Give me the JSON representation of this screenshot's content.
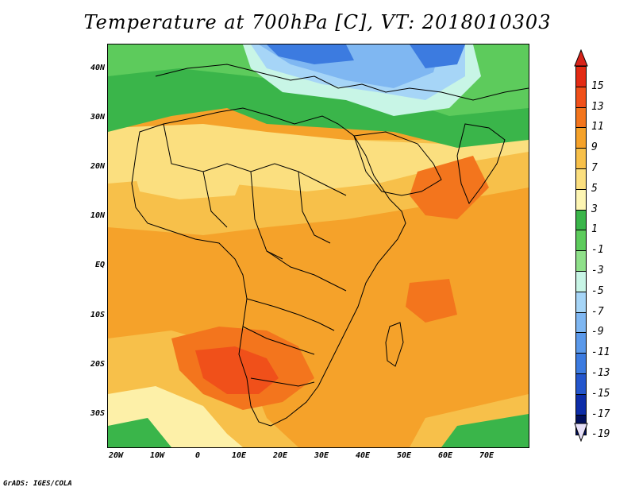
{
  "title": "Temperature at 700hPa [C], VT: 2018010303",
  "credit": "GrADS: IGES/COLA",
  "lat_labels": [
    "40N",
    "30N",
    "20N",
    "10N",
    "EQ",
    "10S",
    "20S",
    "30S"
  ],
  "lon_labels": [
    "20W",
    "10W",
    "0",
    "10E",
    "20E",
    "30E",
    "40E",
    "50E",
    "60E",
    "70E"
  ],
  "colorbar": {
    "labels": [
      "15",
      "13",
      "11",
      "9",
      "7",
      "5",
      "3",
      "1",
      "-1",
      "-3",
      "-5",
      "-7",
      "-9",
      "-11",
      "-13",
      "-15",
      "-17",
      "-19"
    ],
    "colors": [
      "#e32b14",
      "#f0501a",
      "#f3751d",
      "#f5a22a",
      "#f7c04a",
      "#fbdf7f",
      "#fdf5b3",
      "#3ab54a",
      "#5dcb5c",
      "#8fe08a",
      "#c8f5e6",
      "#a6d5f7",
      "#7fb7f2",
      "#5b99ea",
      "#3c7be0",
      "#2456cc",
      "#0d2da8",
      "#02105e"
    ],
    "top_triangle_color": "#d8231a",
    "bottom_triangle_color": "#e6e0f8"
  },
  "map_colors": {
    "land_outline": "#000000",
    "cold": "#3c7be0",
    "cool": "#a6d5f7",
    "green": "#3ab54a",
    "light_green": "#8fe08a",
    "yellow": "#fdf0a8",
    "light_orange": "#f7c04a",
    "orange": "#f5a22a",
    "dark_orange": "#f0501a"
  }
}
